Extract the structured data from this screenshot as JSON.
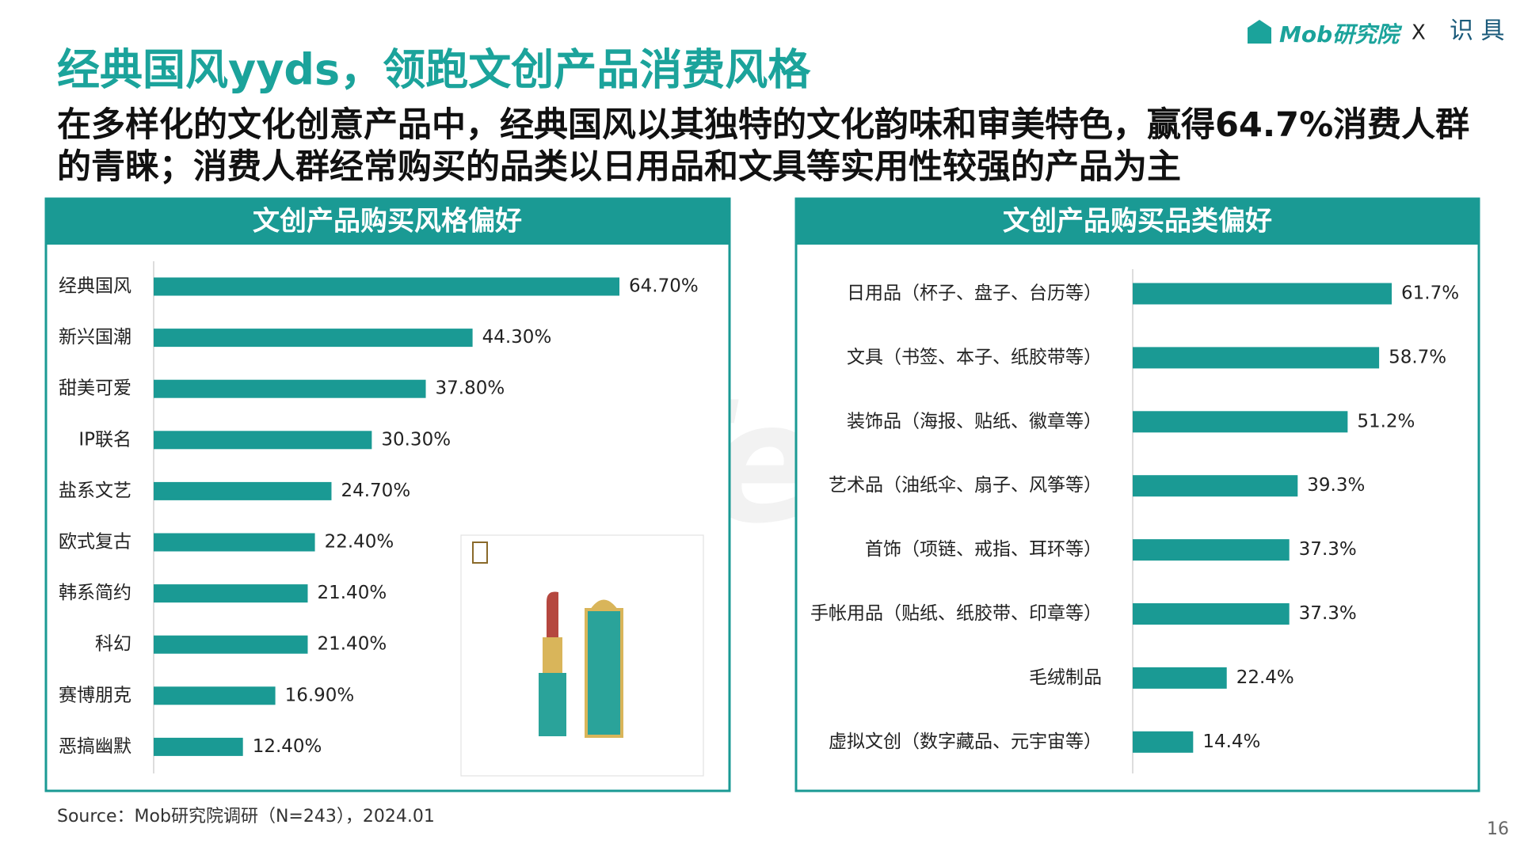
{
  "header": {
    "title": "经典国风yyds，领跑文创产品消费风格",
    "subtitle": "在多样化的文化创意产品中，经典国风以其独特的文化韵味和审美特色，赢得64.7%消费人群的青睐；消费人群经常购买的品类以日用品和文具等实用性较强的产品为主",
    "logo": "Mob研究院",
    "logo_sep": "X",
    "partner": "识 具"
  },
  "watermark": "MobTech袤博",
  "chart_data": [
    {
      "type": "bar",
      "orientation": "horizontal",
      "title": "文创产品购买风格偏好",
      "color": "#1a9a94",
      "categories": [
        "经典国风",
        "新兴国潮",
        "甜美可爱",
        "IP联名",
        "盐系文艺",
        "欧式复古",
        "韩系简约",
        "科幻",
        "赛博朋克",
        "恶搞幽默"
      ],
      "values": [
        64.7,
        44.3,
        37.8,
        30.3,
        24.7,
        22.4,
        21.4,
        21.4,
        16.9,
        12.4
      ],
      "value_labels": [
        "64.70%",
        "44.30%",
        "37.80%",
        "30.30%",
        "24.70%",
        "22.40%",
        "21.40%",
        "21.40%",
        "16.90%",
        "12.40%"
      ]
    },
    {
      "type": "bar",
      "orientation": "horizontal",
      "title": "文创产品购买品类偏好",
      "color": "#1a9a94",
      "categories": [
        "日用品（杯子、盘子、台历等）",
        "文具（书签、本子、纸胶带等）",
        "装饰品（海报、贴纸、徽章等）",
        "艺术品（油纸伞、扇子、风筝等）",
        "首饰（项链、戒指、耳环等）",
        "手帐用品（贴纸、纸胶带、印章等）",
        "毛绒制品",
        "虚拟文创（数字藏品、元宇宙等）"
      ],
      "values": [
        61.7,
        58.7,
        51.2,
        39.3,
        37.3,
        37.3,
        22.4,
        14.4
      ],
      "value_labels": [
        "61.7%",
        "58.7%",
        "51.2%",
        "39.3%",
        "37.3%",
        "37.3%",
        "22.4%",
        "14.4%"
      ]
    }
  ],
  "source": "Source：Mob研究院调研（N=243），2024.01",
  "page_number": "16"
}
